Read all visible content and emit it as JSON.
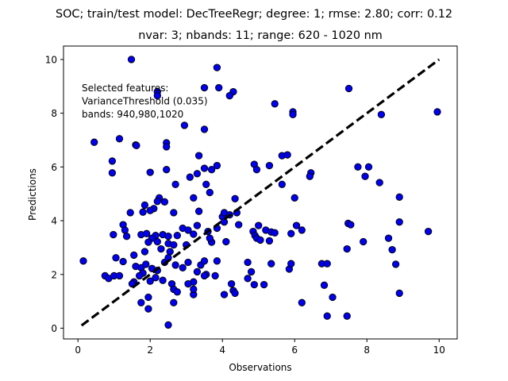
{
  "chart_data": {
    "type": "scatter",
    "title": "SOC; train/test model: DecTreeRegr; degree: 1; rmse: 2.80; corr: 0.12",
    "subtitle": "nvar: 3; nbands: 11; range: 620 - 1020 nm",
    "xlabel": "Observations",
    "ylabel": "Predictions",
    "xlim": [
      -0.4,
      10.5
    ],
    "ylim": [
      -0.4,
      10.5
    ],
    "xticks": [
      0,
      2,
      4,
      6,
      8,
      10
    ],
    "yticks": [
      0,
      2,
      4,
      6,
      8,
      10
    ],
    "grid": false,
    "annotation": [
      "Selected features:",
      "VarianceThreshold (0.035)",
      "bands: 940,980,1020"
    ],
    "reference_line": {
      "style": "dashed",
      "color": "#000000",
      "from": [
        0.1,
        0.1
      ],
      "to": [
        10.0,
        10.0
      ]
    },
    "marker": {
      "face": "#0000ee",
      "edge": "#000000"
    },
    "points": [
      [
        1.48,
        10.0
      ],
      [
        3.85,
        9.7
      ],
      [
        3.5,
        8.95
      ],
      [
        3.9,
        8.95
      ],
      [
        4.3,
        8.8
      ],
      [
        4.2,
        8.65
      ],
      [
        2.2,
        8.8
      ],
      [
        2.2,
        8.65
      ],
      [
        7.5,
        8.92
      ],
      [
        5.45,
        8.35
      ],
      [
        5.95,
        8.05
      ],
      [
        5.95,
        7.95
      ],
      [
        8.4,
        7.95
      ],
      [
        9.95,
        8.05
      ],
      [
        2.95,
        7.55
      ],
      [
        3.5,
        7.4
      ],
      [
        1.15,
        7.05
      ],
      [
        0.45,
        6.92
      ],
      [
        2.45,
        6.9
      ],
      [
        2.45,
        6.75
      ],
      [
        1.6,
        6.82
      ],
      [
        1.62,
        6.8
      ],
      [
        3.35,
        6.42
      ],
      [
        5.65,
        6.42
      ],
      [
        5.8,
        6.45
      ],
      [
        0.95,
        6.22
      ],
      [
        3.85,
        6.05
      ],
      [
        4.88,
        6.1
      ],
      [
        5.3,
        6.05
      ],
      [
        3.5,
        5.95
      ],
      [
        3.7,
        5.9
      ],
      [
        3.3,
        5.75
      ],
      [
        4.95,
        5.9
      ],
      [
        3.1,
        5.62
      ],
      [
        0.95,
        5.78
      ],
      [
        2.0,
        5.8
      ],
      [
        2.45,
        5.9
      ],
      [
        7.75,
        6.0
      ],
      [
        8.05,
        6.0
      ],
      [
        6.45,
        5.78
      ],
      [
        6.42,
        5.65
      ],
      [
        7.95,
        5.65
      ],
      [
        8.35,
        5.42
      ],
      [
        2.7,
        5.35
      ],
      [
        3.55,
        5.35
      ],
      [
        5.65,
        5.35
      ],
      [
        3.65,
        5.05
      ],
      [
        2.25,
        4.85
      ],
      [
        3.2,
        4.85
      ],
      [
        6.0,
        4.85
      ],
      [
        8.9,
        4.88
      ],
      [
        4.35,
        4.82
      ],
      [
        2.4,
        4.7
      ],
      [
        2.2,
        4.72
      ],
      [
        1.85,
        4.58
      ],
      [
        2.1,
        4.45
      ],
      [
        1.8,
        4.32
      ],
      [
        2.0,
        4.38
      ],
      [
        2.65,
        4.3
      ],
      [
        1.45,
        4.3
      ],
      [
        3.35,
        4.35
      ],
      [
        4.4,
        4.3
      ],
      [
        4.0,
        4.15
      ],
      [
        4.05,
        4.3
      ],
      [
        4.2,
        4.22
      ],
      [
        1.25,
        3.85
      ],
      [
        1.3,
        3.65
      ],
      [
        1.35,
        3.42
      ],
      [
        0.98,
        3.48
      ],
      [
        1.75,
        3.48
      ],
      [
        1.9,
        3.52
      ],
      [
        2.15,
        3.45
      ],
      [
        2.35,
        3.48
      ],
      [
        2.05,
        3.35
      ],
      [
        1.95,
        3.2
      ],
      [
        2.2,
        3.22
      ],
      [
        2.5,
        3.42
      ],
      [
        2.9,
        3.72
      ],
      [
        3.05,
        3.65
      ],
      [
        3.3,
        3.82
      ],
      [
        3.6,
        3.6
      ],
      [
        3.85,
        3.72
      ],
      [
        4.05,
        3.95
      ],
      [
        3.7,
        3.2
      ],
      [
        4.1,
        3.22
      ],
      [
        4.45,
        3.85
      ],
      [
        4.85,
        3.6
      ],
      [
        5.0,
        3.82
      ],
      [
        5.2,
        3.65
      ],
      [
        5.35,
        3.58
      ],
      [
        5.45,
        3.55
      ],
      [
        5.9,
        3.52
      ],
      [
        6.05,
        3.82
      ],
      [
        6.2,
        3.65
      ],
      [
        4.9,
        3.45
      ],
      [
        4.95,
        3.35
      ],
      [
        5.05,
        3.28
      ],
      [
        5.3,
        3.25
      ],
      [
        2.5,
        3.15
      ],
      [
        2.3,
        2.95
      ],
      [
        2.55,
        2.85
      ],
      [
        2.65,
        3.1
      ],
      [
        2.75,
        3.45
      ],
      [
        3.2,
        3.5
      ],
      [
        3.0,
        3.1
      ],
      [
        1.85,
        2.85
      ],
      [
        1.55,
        2.72
      ],
      [
        1.25,
        2.48
      ],
      [
        1.05,
        2.62
      ],
      [
        1.6,
        2.3
      ],
      [
        1.75,
        2.25
      ],
      [
        1.88,
        2.38
      ],
      [
        2.05,
        2.22
      ],
      [
        2.2,
        2.15
      ],
      [
        2.4,
        2.45
      ],
      [
        2.5,
        2.62
      ],
      [
        2.15,
        1.88
      ],
      [
        1.8,
        2.05
      ],
      [
        1.7,
        1.95
      ],
      [
        2.0,
        1.75
      ],
      [
        2.35,
        1.78
      ],
      [
        1.55,
        1.72
      ],
      [
        2.6,
        1.65
      ],
      [
        2.65,
        1.45
      ],
      [
        2.75,
        1.35
      ],
      [
        2.7,
        2.35
      ],
      [
        2.9,
        2.25
      ],
      [
        3.05,
        2.45
      ],
      [
        3.4,
        2.35
      ],
      [
        3.5,
        2.5
      ],
      [
        3.85,
        2.5
      ],
      [
        3.3,
        2.1
      ],
      [
        3.55,
        2.0
      ],
      [
        3.2,
        1.72
      ],
      [
        3.05,
        1.65
      ],
      [
        3.5,
        1.95
      ],
      [
        3.8,
        1.95
      ],
      [
        4.25,
        1.65
      ],
      [
        4.7,
        1.85
      ],
      [
        4.8,
        2.1
      ],
      [
        4.7,
        2.45
      ],
      [
        5.15,
        1.62
      ],
      [
        4.88,
        1.62
      ],
      [
        5.35,
        2.4
      ],
      [
        5.85,
        2.2
      ],
      [
        5.9,
        2.4
      ],
      [
        6.2,
        0.95
      ],
      [
        6.75,
        2.4
      ],
      [
        6.9,
        2.4
      ],
      [
        6.82,
        1.6
      ],
      [
        6.9,
        0.45
      ],
      [
        7.05,
        1.15
      ],
      [
        7.45,
        0.45
      ],
      [
        7.9,
        3.22
      ],
      [
        8.6,
        3.35
      ],
      [
        8.7,
        2.92
      ],
      [
        8.8,
        2.38
      ],
      [
        8.9,
        3.95
      ],
      [
        8.9,
        1.3
      ],
      [
        7.48,
        3.9
      ],
      [
        7.55,
        3.85
      ],
      [
        7.45,
        2.95
      ],
      [
        9.7,
        3.6
      ],
      [
        0.15,
        2.5
      ],
      [
        0.75,
        1.95
      ],
      [
        0.85,
        1.85
      ],
      [
        1.0,
        1.95
      ],
      [
        1.15,
        1.95
      ],
      [
        1.5,
        1.65
      ],
      [
        1.75,
        0.95
      ],
      [
        1.95,
        0.72
      ],
      [
        1.95,
        1.15
      ],
      [
        2.5,
        0.12
      ],
      [
        2.65,
        0.95
      ],
      [
        3.2,
        1.25
      ],
      [
        4.05,
        1.25
      ],
      [
        4.3,
        1.4
      ],
      [
        4.35,
        1.3
      ],
      [
        3.2,
        1.45
      ],
      [
        3.65,
        3.35
      ]
    ]
  }
}
